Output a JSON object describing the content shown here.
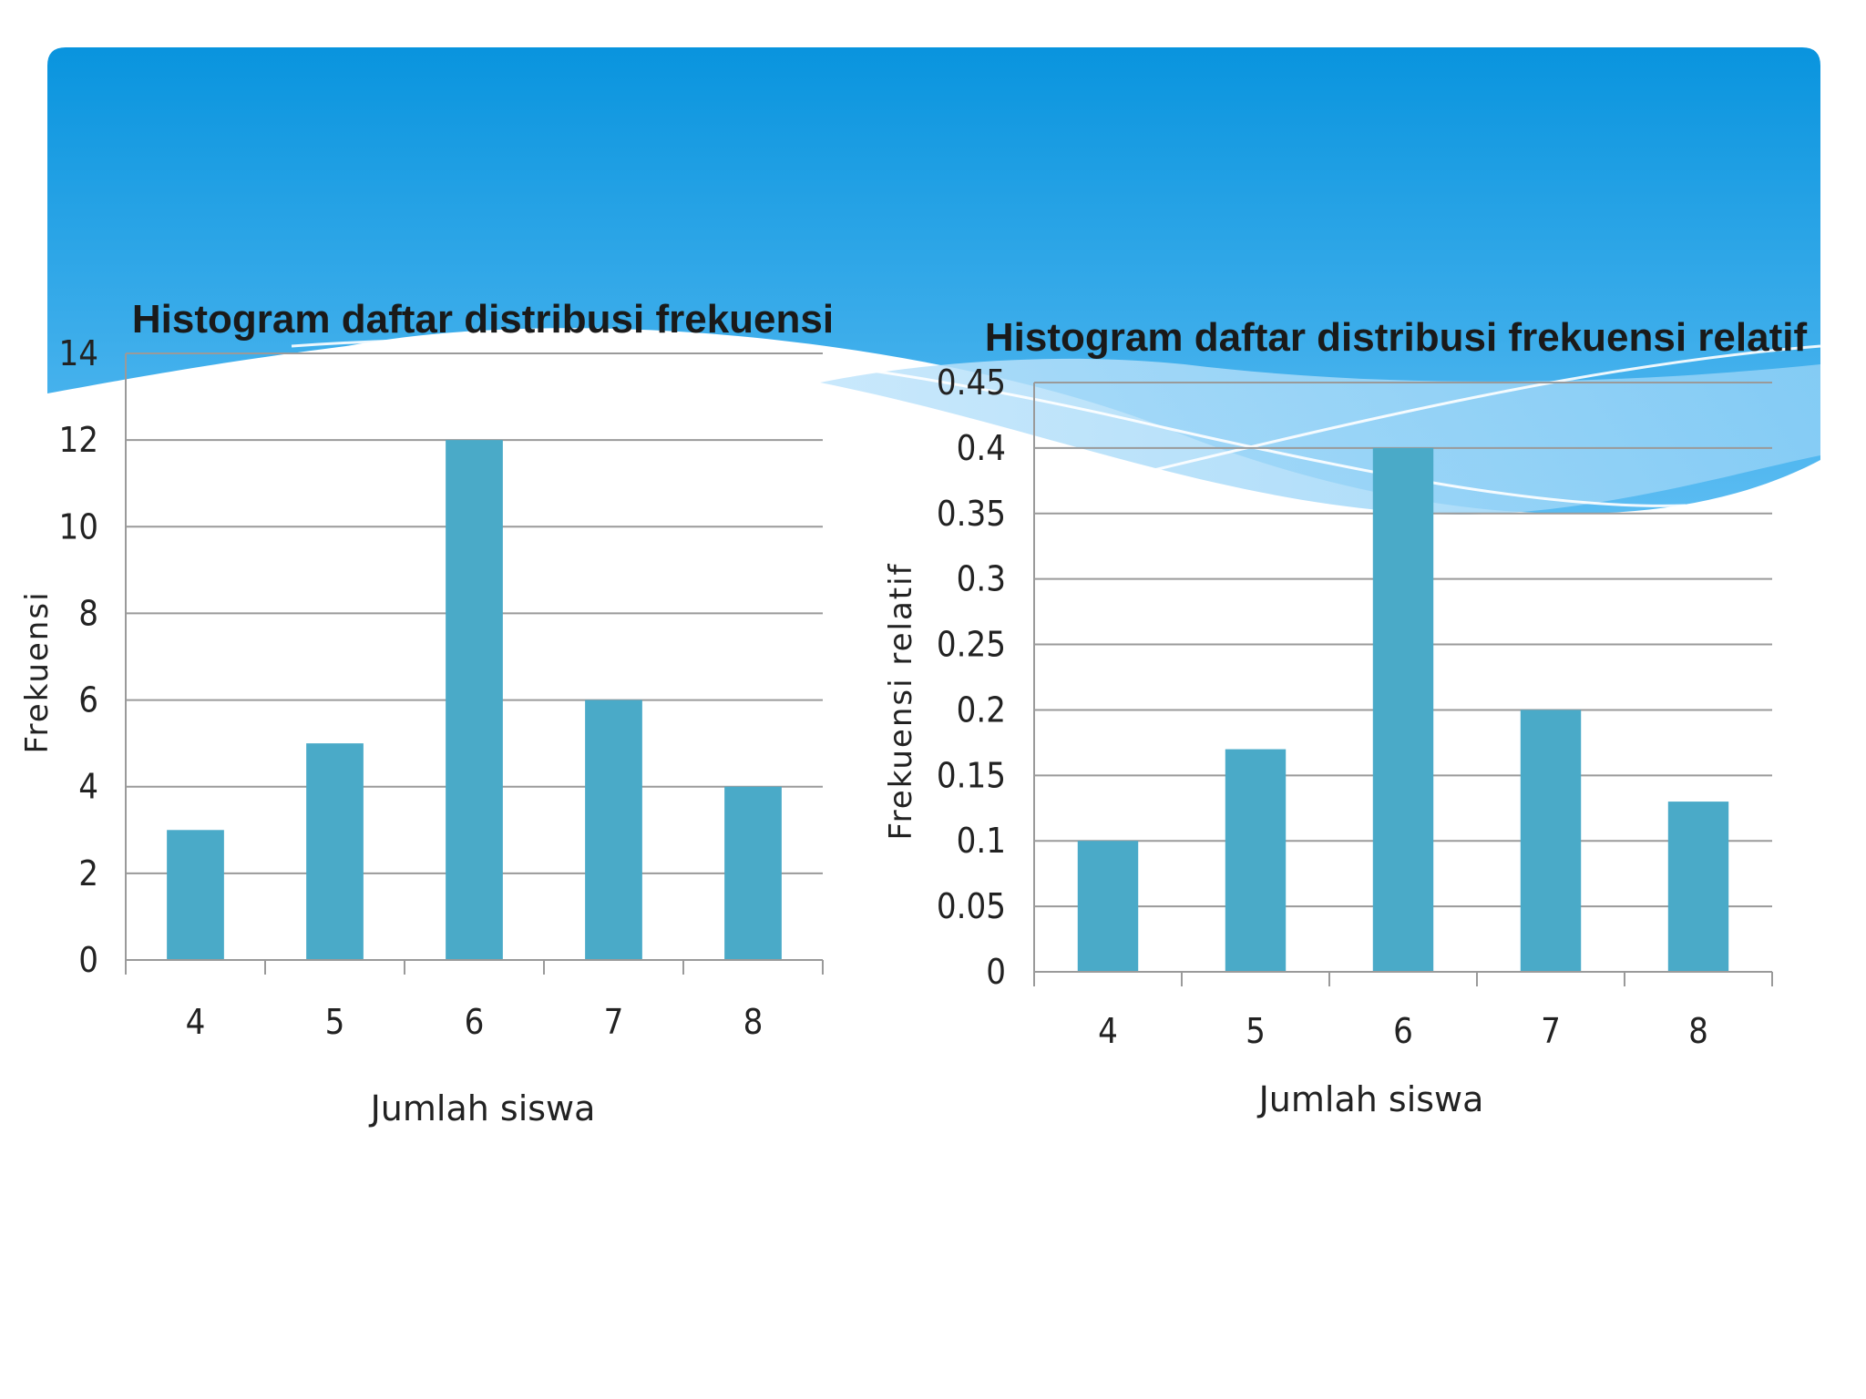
{
  "colors": {
    "banner_top": "#0994de",
    "banner_bottom": "#5bbcf2",
    "bar": "#4aaac8",
    "grid": "#9a9a9a"
  },
  "chart_data": [
    {
      "type": "bar",
      "title": "Histogram daftar distribusi frekuensi",
      "categories": [
        "4",
        "5",
        "6",
        "7",
        "8"
      ],
      "values": [
        3,
        5,
        12,
        6,
        4
      ],
      "xlabel": "Jumlah siswa",
      "ylabel": "Frekuensi",
      "ylim": [
        0,
        14
      ],
      "yticks": [
        "0",
        "2",
        "4",
        "6",
        "8",
        "10",
        "12",
        "14"
      ],
      "grid": true
    },
    {
      "type": "bar",
      "title": "Histogram daftar distribusi frekuensi relatif",
      "categories": [
        "4",
        "5",
        "6",
        "7",
        "8"
      ],
      "values": [
        0.1,
        0.17,
        0.4,
        0.2,
        0.13
      ],
      "xlabel": "Jumlah siswa",
      "ylabel": "Frekuensi relatif",
      "ylim": [
        0,
        0.45
      ],
      "yticks": [
        "0",
        "0.05",
        "0.1",
        "0.15",
        "0.2",
        "0.25",
        "0.3",
        "0.35",
        "0.4",
        "0.45"
      ],
      "grid": true
    }
  ]
}
